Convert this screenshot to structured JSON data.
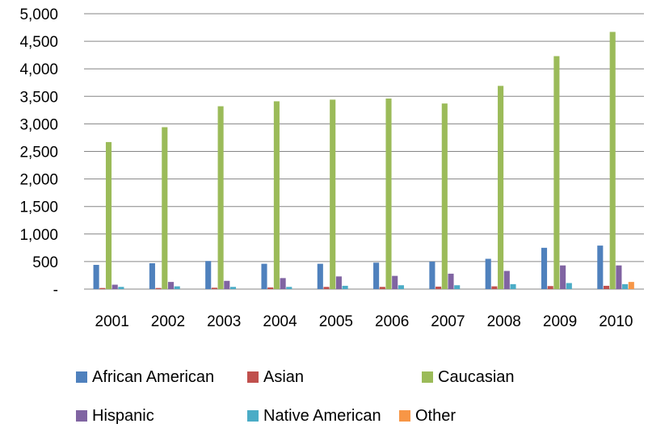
{
  "chart_data": {
    "type": "bar",
    "title": "",
    "xlabel": "",
    "ylabel": "",
    "ylim": [
      0,
      5000
    ],
    "yticks": [
      0,
      500,
      1000,
      1500,
      2000,
      2500,
      3000,
      3500,
      4000,
      4500,
      5000
    ],
    "ytick_labels": [
      "-",
      "500",
      "1,000",
      "1,500",
      "2,000",
      "2,500",
      "3,000",
      "3,500",
      "4,000",
      "4,500",
      "5,000"
    ],
    "grid": true,
    "legend_position": "bottom",
    "categories": [
      "2001",
      "2002",
      "2003",
      "2004",
      "2005",
      "2006",
      "2007",
      "2008",
      "2009",
      "2010"
    ],
    "series": [
      {
        "name": "African American",
        "color": "#4F81BD",
        "values": [
          440,
          470,
          510,
          460,
          460,
          480,
          500,
          550,
          750,
          790
        ]
      },
      {
        "name": "Asian",
        "color": "#C0504D",
        "values": [
          20,
          20,
          25,
          30,
          40,
          40,
          45,
          50,
          55,
          60
        ]
      },
      {
        "name": "Caucasian",
        "color": "#9BBB59",
        "values": [
          2670,
          2940,
          3320,
          3410,
          3440,
          3460,
          3370,
          3690,
          4230,
          4670
        ]
      },
      {
        "name": "Hispanic",
        "color": "#8064A2",
        "values": [
          80,
          130,
          150,
          200,
          230,
          240,
          280,
          330,
          430,
          430
        ]
      },
      {
        "name": "Native American",
        "color": "#4BACC6",
        "values": [
          40,
          50,
          40,
          40,
          60,
          70,
          70,
          90,
          110,
          90
        ]
      },
      {
        "name": "Other",
        "color": "#F79646",
        "values": [
          0,
          0,
          0,
          0,
          0,
          0,
          0,
          0,
          0,
          130
        ]
      }
    ]
  }
}
